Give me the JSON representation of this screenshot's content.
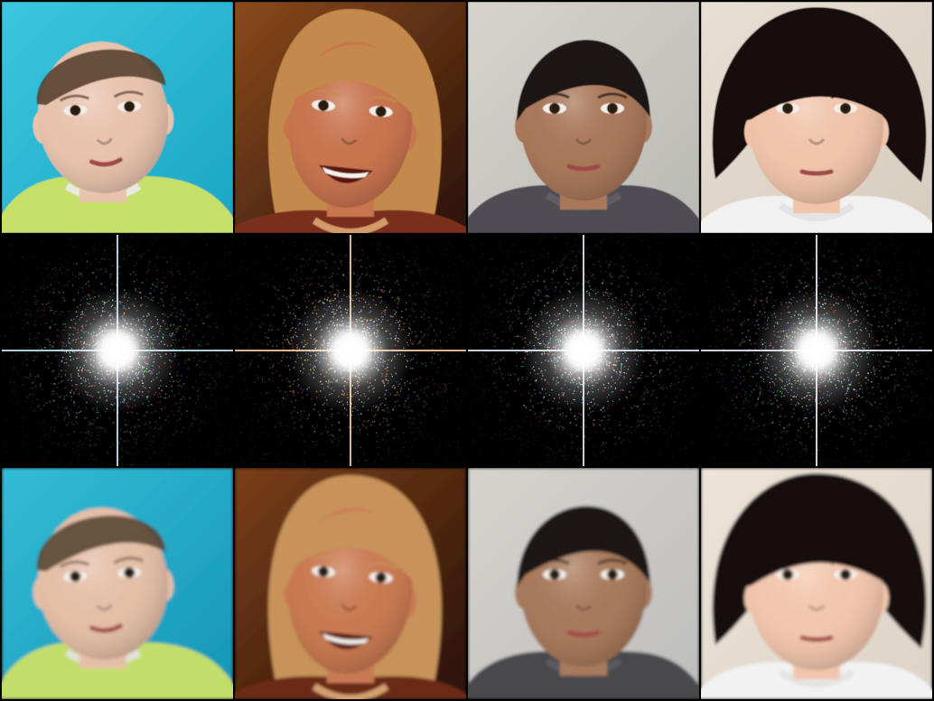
{
  "rows": [
    {
      "role": "input-photos",
      "tiles": [
        {
          "subject": "infant-blue-seat",
          "bg": "#1aa6c4",
          "bg2": "#3cc6df",
          "skin": "#e8c3ae",
          "hair": "#5a4330",
          "cloth": "#c6e06a",
          "cloth2": "#e9e9e0"
        },
        {
          "subject": "smiling-blonde-woman",
          "bg": "#2a1208",
          "bg2": "#8a4a1c",
          "skin": "#c8744f",
          "hair": "#c48a4c",
          "cloth": "#7a2e1c",
          "cloth2": "#d49a6a"
        },
        {
          "subject": "woman-dark-hair",
          "bg": "#b9b9b4",
          "bg2": "#d8d4cc",
          "skin": "#a9785a",
          "hair": "#1c1712",
          "cloth": "#4f4e52",
          "cloth2": "#5e5d62"
        },
        {
          "subject": "toddler-black-bob",
          "bg": "#d7cdbf",
          "bg2": "#e8e0d4",
          "skin": "#f0c4ab",
          "hair": "#15110e",
          "cloth": "#f1f1f1",
          "cloth2": "#e3e3e3"
        }
      ]
    },
    {
      "role": "fourier-spectra",
      "tiles": [
        {
          "subject": "spectrum-1",
          "core": "#ffffff",
          "noise": [
            "#ff4a4a",
            "#4aff8a",
            "#6a7dff",
            "#ffffff"
          ],
          "axis": "#cfefff"
        },
        {
          "subject": "spectrum-2",
          "core": "#ffffff",
          "noise": [
            "#ff6a3a",
            "#ffd24a",
            "#4a9dff",
            "#ffffff"
          ],
          "axis": "#ffd6a8"
        },
        {
          "subject": "spectrum-3",
          "core": "#ffffff",
          "noise": [
            "#ff4a4a",
            "#4aff8a",
            "#6a7dff",
            "#ffffff"
          ],
          "axis": "#e8f4ff"
        },
        {
          "subject": "spectrum-4",
          "core": "#ffffff",
          "noise": [
            "#ff4a4a",
            "#4aff8a",
            "#6a7dff",
            "#ffffff"
          ],
          "axis": "#f4f4ff"
        }
      ]
    },
    {
      "role": "reconstructed-photos",
      "tiles": [
        {
          "subject": "infant-blue-seat",
          "bg": "#1596b6",
          "bg2": "#34bcd6",
          "skin": "#e4bfa8",
          "hair": "#5a4634",
          "cloth": "#c2de6a",
          "cloth2": "#e2e2d8"
        },
        {
          "subject": "smiling-blonde-woman",
          "bg": "#2a1208",
          "bg2": "#7a3e18",
          "skin": "#c97a52",
          "hair": "#c8935a",
          "cloth": "#6a2a18",
          "cloth2": "#d4a070"
        },
        {
          "subject": "woman-dark-hair",
          "bg": "#bdbdbd",
          "bg2": "#d6d3cd",
          "skin": "#a87a5c",
          "hair": "#1a1612",
          "cloth": "#4a4a4e",
          "cloth2": "#5a5a5e"
        },
        {
          "subject": "toddler-black-bob",
          "bg": "#ddd3c6",
          "bg2": "#ece4d8",
          "skin": "#f2c6ae",
          "hair": "#15110e",
          "cloth": "#f2f2f2",
          "cloth2": "#e4e4e4"
        }
      ]
    }
  ]
}
